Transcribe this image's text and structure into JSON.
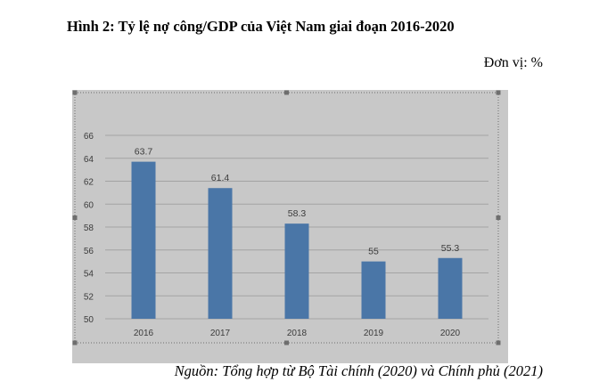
{
  "header": {
    "title": "Hình 2: Tỷ lệ nợ công/GDP của Việt Nam giai đoạn 2016-2020",
    "unit": "Đơn vị: %"
  },
  "footer": {
    "source": "Nguồn: Tổng hợp từ Bộ Tài chính (2020) và Chính phủ (2021)"
  },
  "colors": {
    "bar": "#4a76a7",
    "plot_background": "#c8c8c8",
    "gridline": "#a3a3a3",
    "tick_text": "#3b3b3b"
  },
  "chart_data": {
    "type": "bar",
    "categories": [
      "2016",
      "2017",
      "2018",
      "2019",
      "2020"
    ],
    "values": [
      63.7,
      61.4,
      58.3,
      55,
      55.3
    ],
    "data_labels": [
      "63.7",
      "61.4",
      "58.3",
      "55",
      "55.3"
    ],
    "yticks": [
      50,
      52,
      54,
      56,
      58,
      60,
      62,
      64,
      66
    ],
    "ylim": [
      50,
      66
    ],
    "grid": true,
    "legend": false
  }
}
